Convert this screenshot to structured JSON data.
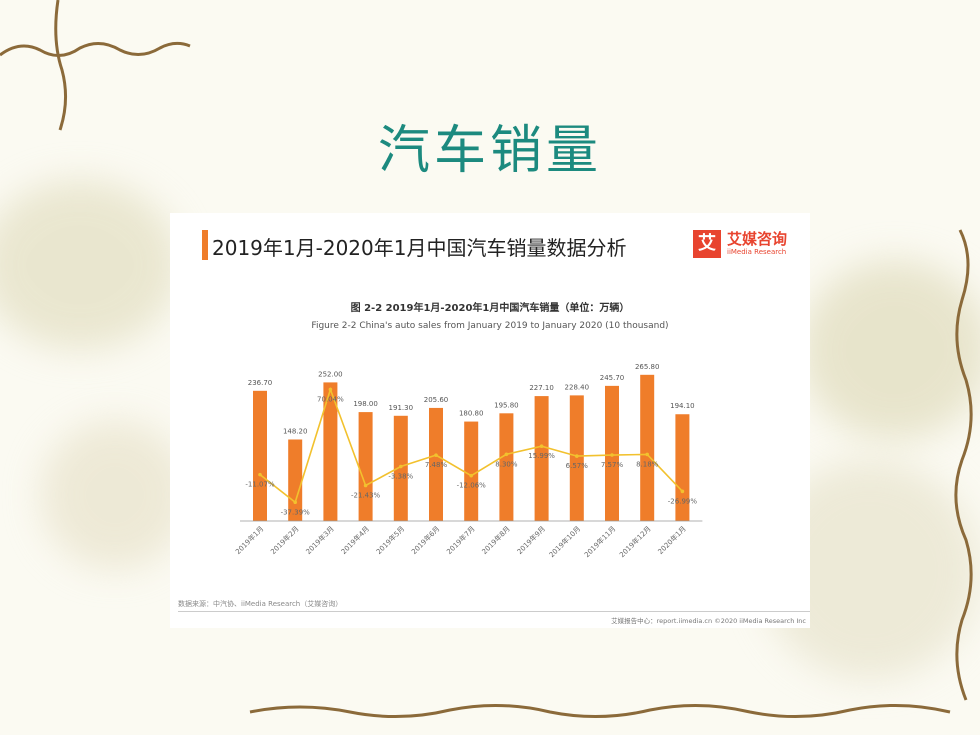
{
  "slide": {
    "title": "汽车销量"
  },
  "header": {
    "title": "2019年1月-2020年1月中国汽车销量数据分析"
  },
  "logo": {
    "mark": "艾",
    "cn": "艾媒咨询",
    "en": "iiMedia Research"
  },
  "chart_data": {
    "type": "bar",
    "title": "图 2-2 2019年1月-2020年1月中国汽车销量（单位：万辆）",
    "subtitle": "Figure 2-2 China's auto sales from January 2019 to January 2020 (10 thousand)",
    "categories": [
      "2019年1月",
      "2019年2月",
      "2019年3月",
      "2019年4月",
      "2019年5月",
      "2019年6月",
      "2019年7月",
      "2019年8月",
      "2019年9月",
      "2019年10月",
      "2019年11月",
      "2019年12月",
      "2020年1月"
    ],
    "series": [
      {
        "values": [
          236.7,
          148.2,
          252.0,
          198.0,
          191.3,
          205.6,
          180.8,
          195.8,
          227.1,
          228.4,
          245.7,
          265.8,
          194.1
        ],
        "labels": [
          "236.70",
          "148.20",
          "252.00",
          "198.00",
          "191.30",
          "205.60",
          "180.80",
          "195.80",
          "227.10",
          "228.40",
          "245.70",
          "265.80",
          "194.10"
        ],
        "color": "#ef7d2a"
      },
      {
        "values": [
          -11.07,
          -37.39,
          70.04,
          -21.43,
          -3.38,
          7.48,
          -12.06,
          8.3,
          15.99,
          6.57,
          7.57,
          8.18,
          -26.99
        ],
        "labels": [
          "-11.07%",
          "-37.39%",
          "70.04%",
          "-21.43%",
          "-3.38%",
          "7.48%",
          "-12.06%",
          "8.30%",
          "15.99%",
          "6.57%",
          "7.57%",
          "8.18%",
          "-26.99%"
        ],
        "color": "#f2c12e"
      }
    ]
  },
  "source": "数据来源：中汽协、iiMedia Research（艾媒咨询）",
  "footer": "艾媒报告中心：report.iimedia.cn ©2020 iiMedia Research Inc"
}
